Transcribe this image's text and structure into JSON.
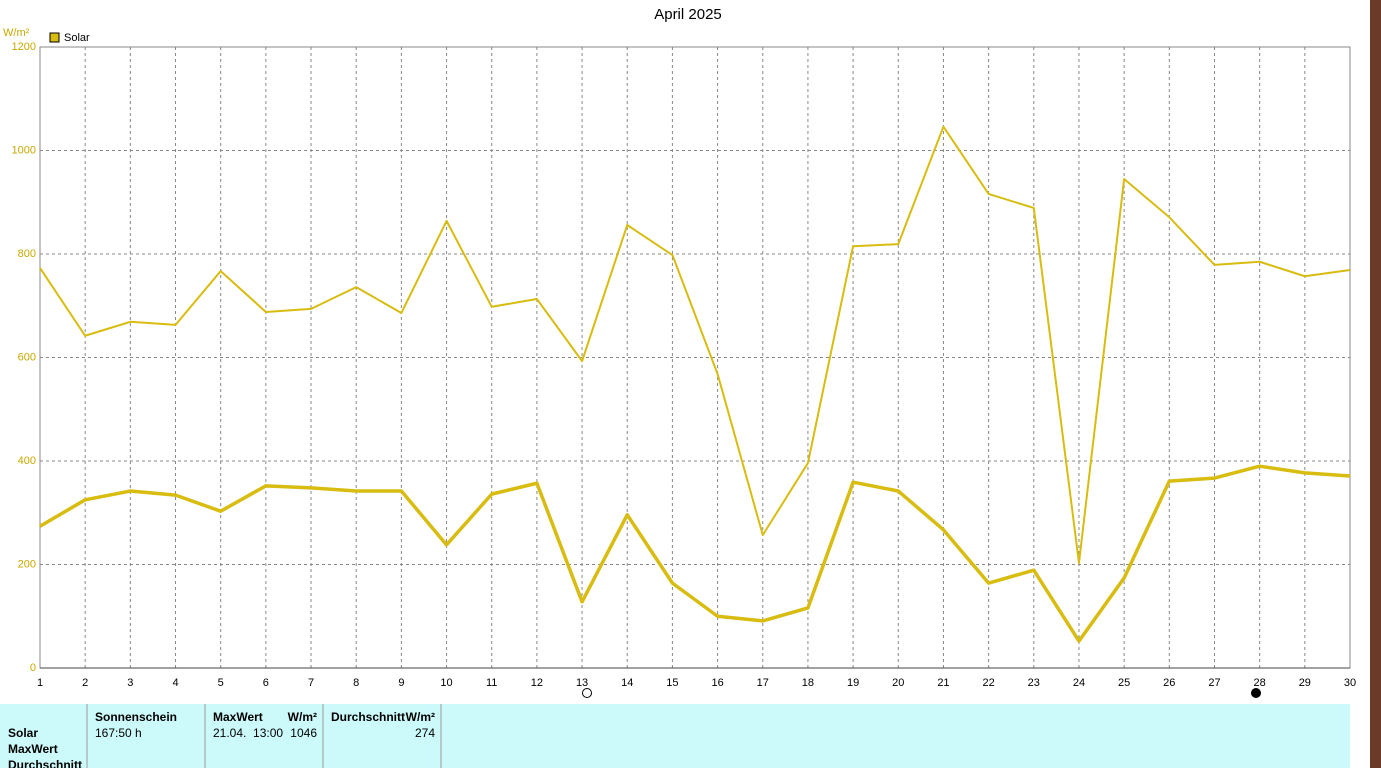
{
  "chart_data": {
    "type": "line",
    "title": "April 2025",
    "y_label": "W/m²",
    "legend": "Solar",
    "legend_color": "#d8bc10",
    "x": [
      1,
      2,
      3,
      4,
      5,
      6,
      7,
      8,
      9,
      10,
      11,
      12,
      13,
      14,
      15,
      16,
      17,
      18,
      19,
      20,
      21,
      22,
      23,
      24,
      25,
      26,
      27,
      28,
      29,
      30
    ],
    "xlim": [
      1,
      30
    ],
    "xticks": [
      1,
      2,
      3,
      4,
      5,
      6,
      7,
      8,
      9,
      10,
      11,
      12,
      13,
      14,
      15,
      16,
      17,
      18,
      19,
      20,
      21,
      22,
      23,
      24,
      25,
      26,
      27,
      28,
      29,
      30
    ],
    "ylim": [
      0,
      1200
    ],
    "yticks": [
      0,
      200,
      400,
      600,
      800,
      1000,
      1200
    ],
    "grid": true,
    "series": [
      {
        "color": "#d8bc10",
        "width": 2,
        "values": [
          773,
          642,
          669,
          663,
          767,
          688,
          694,
          736,
          686,
          864,
          698,
          713,
          593,
          856,
          798,
          568,
          257,
          396,
          815,
          819,
          1046,
          916,
          889,
          203,
          945,
          871,
          779,
          785,
          757,
          769
        ]
      },
      {
        "color": "#d8bc10",
        "width": 3.5,
        "values": [
          274,
          325,
          342,
          334,
          303,
          352,
          348,
          342,
          342,
          238,
          336,
          357,
          128,
          296,
          164,
          100,
          91,
          116,
          359,
          342,
          267,
          164,
          189,
          52,
          174,
          361,
          367,
          390,
          377,
          371
        ]
      }
    ]
  },
  "table": {
    "row_labels": [
      "Solar",
      "MaxWert",
      "Durchschnitt"
    ],
    "sunshine": {
      "header": "Sonnenschein",
      "value": "167:50 h"
    },
    "max": {
      "header": "MaxWert",
      "unit": "W/m²",
      "time": "21.04.  13:00",
      "value": 1046
    },
    "avg": {
      "header": "Durchschnitt",
      "unit": "W/m²",
      "value": 274
    }
  }
}
